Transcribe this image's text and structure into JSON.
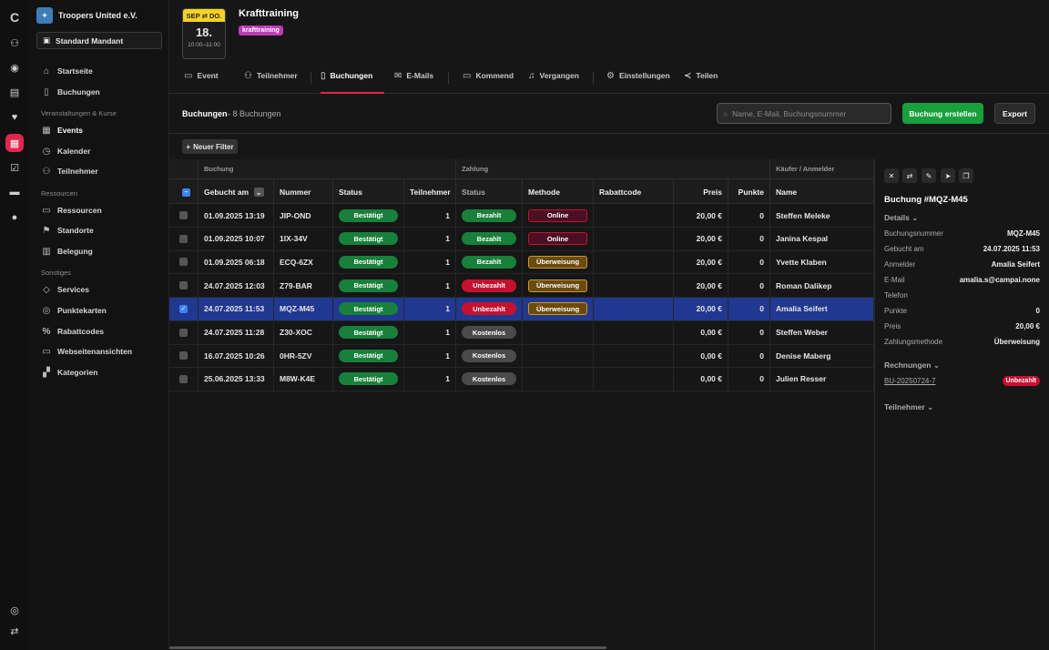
{
  "org": {
    "name": "Troopers United e.V.",
    "mandant": "Standard Mandant"
  },
  "sidebar": {
    "top": [
      {
        "icon": "home-icon",
        "label": "Startseite"
      },
      {
        "icon": "book-icon",
        "label": "Buchungen"
      }
    ],
    "section1": "Veranstaltungen & Kurse",
    "events": [
      {
        "icon": "calendar-icon",
        "label": "Events"
      },
      {
        "icon": "clock-icon",
        "label": "Kalender"
      },
      {
        "icon": "users-icon",
        "label": "Teilnehmer"
      }
    ],
    "section2": "Ressourcen",
    "resources": [
      {
        "icon": "box-icon",
        "label": "Ressourcen"
      },
      {
        "icon": "flag-icon",
        "label": "Standorte"
      },
      {
        "icon": "columns-icon",
        "label": "Belegung"
      }
    ],
    "section3": "Sonstiges",
    "other": [
      {
        "icon": "tag-icon",
        "label": "Services"
      },
      {
        "icon": "check-circle-icon",
        "label": "Punktekarten"
      },
      {
        "icon": "percent-icon",
        "label": "Rabattcodes"
      },
      {
        "icon": "monitor-icon",
        "label": "Webseitenansichten"
      },
      {
        "icon": "category-icon",
        "label": "Kategorien"
      }
    ]
  },
  "event": {
    "month": "SEP ⇄ DO.",
    "day": "18.",
    "time": "10:00–11:00",
    "title": "Krafttraining",
    "tag": "krafttraining"
  },
  "tabs": [
    "Event",
    "Teilnehmer",
    "Buchungen",
    "E-Mails",
    "Kommend",
    "Vergangen",
    "Einstellungen",
    "Teilen"
  ],
  "header": {
    "title": "Buchungen",
    "count": "– 8 Buchungen",
    "search_placeholder": "Name, E-Mail, Buchungsnummer",
    "create": "Buchung erstellen",
    "export": "Export",
    "filter": "Neuer Filter"
  },
  "groups": {
    "buchung": "Buchung",
    "zahlung": "Zahlung",
    "kaeufer": "Käufer / Anmelder"
  },
  "columns": [
    "Gebucht am",
    "Nummer",
    "Status",
    "Teilnehmer",
    "Status",
    "Methode",
    "Rabattcode",
    "Preis",
    "Punkte",
    "Name"
  ],
  "rows": [
    {
      "date": "01.09.2025 13:19",
      "num": "JIP-OND",
      "status": "Bestätigt",
      "tn": "1",
      "pay": "Bezahlt",
      "method": "Online",
      "code": "",
      "price": "20,00 €",
      "points": "0",
      "name": "Steffen Meleke",
      "sel": false
    },
    {
      "date": "01.09.2025 10:07",
      "num": "1IX-34V",
      "status": "Bestätigt",
      "tn": "1",
      "pay": "Bezahlt",
      "method": "Online",
      "code": "",
      "price": "20,00 €",
      "points": "0",
      "name": "Janina Kespal",
      "sel": false
    },
    {
      "date": "01.09.2025 06:18",
      "num": "ECQ-6ZX",
      "status": "Bestätigt",
      "tn": "1",
      "pay": "Bezahlt",
      "method": "Überweisung",
      "code": "",
      "price": "20,00 €",
      "points": "0",
      "name": "Yvette Klaben",
      "sel": false
    },
    {
      "date": "24.07.2025 12:03",
      "num": "Z79-BAR",
      "status": "Bestätigt",
      "tn": "1",
      "pay": "Unbezahlt",
      "method": "Überweisung",
      "code": "",
      "price": "20,00 €",
      "points": "0",
      "name": "Roman Dalikep",
      "sel": false
    },
    {
      "date": "24.07.2025 11:53",
      "num": "MQZ-M45",
      "status": "Bestätigt",
      "tn": "1",
      "pay": "Unbezahlt",
      "method": "Überweisung",
      "code": "",
      "price": "20,00 €",
      "points": "0",
      "name": "Amalia Seifert",
      "sel": true
    },
    {
      "date": "24.07.2025 11:28",
      "num": "Z30-XOC",
      "status": "Bestätigt",
      "tn": "1",
      "pay": "Kostenlos",
      "method": "",
      "code": "",
      "price": "0,00 €",
      "points": "0",
      "name": "Steffen Weber",
      "sel": false
    },
    {
      "date": "16.07.2025 10:26",
      "num": "0HR-5ZV",
      "status": "Bestätigt",
      "tn": "1",
      "pay": "Kostenlos",
      "method": "",
      "code": "",
      "price": "0,00 €",
      "points": "0",
      "name": "Denise Maberg",
      "sel": false
    },
    {
      "date": "25.06.2025 13:33",
      "num": "M8W-K4E",
      "status": "Bestätigt",
      "tn": "1",
      "pay": "Kostenlos",
      "method": "",
      "code": "",
      "price": "0,00 €",
      "points": "0",
      "name": "Julien Resser",
      "sel": false
    }
  ],
  "colors": {
    "Bestätigt": "#17803a",
    "Bezahlt": "#17803a",
    "Unbezahlt": "#c8102e",
    "Kostenlos": "#4a4a4a",
    "Online": "#4a0f22",
    "Überweisung": "#6b4a0c"
  },
  "panel": {
    "title": "Buchung #MQZ-M45",
    "details": "Details ⌄",
    "fields": [
      {
        "k": "Buchungsnummer",
        "v": "MQZ-M45"
      },
      {
        "k": "Gebucht am",
        "v": "24.07.2025 11:53"
      },
      {
        "k": "Anmelder",
        "v": "Amalia Seifert"
      },
      {
        "k": "E-Mail",
        "v": "amalia.s@campai.none"
      },
      {
        "k": "Telefon",
        "v": ""
      },
      {
        "k": "Punkte",
        "v": "0"
      },
      {
        "k": "Preis",
        "v": "20,00 €"
      },
      {
        "k": "Zahlungsmethode",
        "v": "Überweisung"
      }
    ],
    "invoices": "Rechnungen ⌄",
    "invoice_no": "BU-20250724-7",
    "invoice_status": "Unbezahlt",
    "participants": "Teilnehmer ⌄"
  }
}
